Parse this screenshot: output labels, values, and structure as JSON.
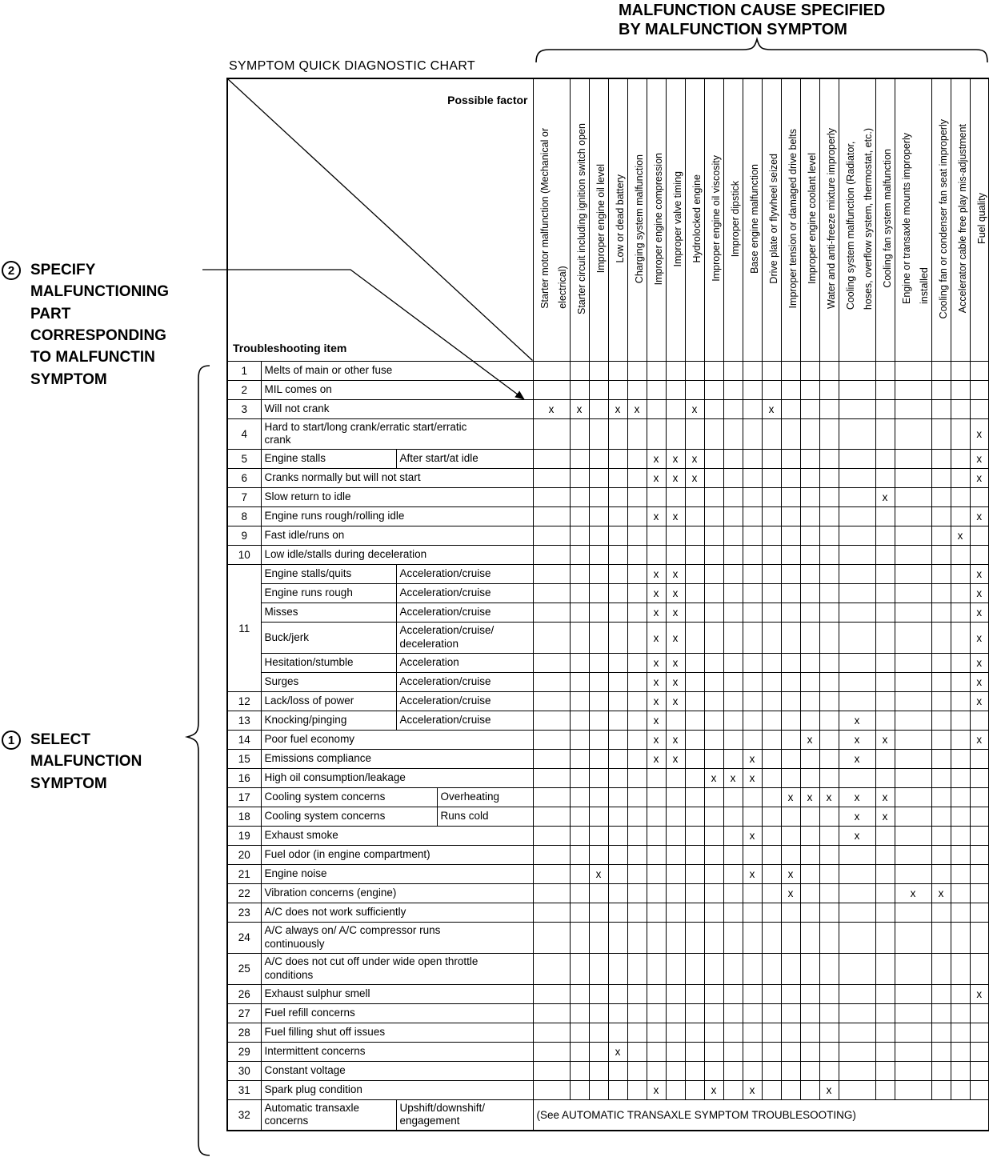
{
  "page": {
    "top_heading": "MALFUNCTION CAUSE SPECIFIED\nBY MALFUNCTION SYMPTOM",
    "chart_title": "SYMPTOM QUICK DIAGNOSTIC CHART",
    "annotation_2": {
      "number": "2",
      "text": "SPECIFY\nMALFUNCTIONING\nPART\nCORRESPONDING\nTO MALFUNCTIN\nSYMPTOM"
    },
    "annotation_1": {
      "number": "1",
      "text": "SELECT\nMALFUNCTION\nSYMPTOM"
    }
  },
  "table": {
    "corner": {
      "top_label": "Possible factor",
      "bottom_label": "Troubleshooting item"
    },
    "mark": "x",
    "columns": [
      {
        "label": "Starter motor malfunction (Mechanical or\nelectrical)",
        "wide": true
      },
      {
        "label": "Starter circuit including ignition switch open",
        "wide": false
      },
      {
        "label": "Improper engine oil level",
        "wide": false
      },
      {
        "label": "Low or dead battery",
        "wide": false
      },
      {
        "label": "Charging system malfunction",
        "wide": false
      },
      {
        "label": "Improper engine compression",
        "wide": false
      },
      {
        "label": "Improper valve timing",
        "wide": false
      },
      {
        "label": "Hydrolocked engine",
        "wide": false
      },
      {
        "label": "Improper engine oil viscosity",
        "wide": false
      },
      {
        "label": "Improper dipstick",
        "wide": false
      },
      {
        "label": "Base engine malfunction",
        "wide": false
      },
      {
        "label": "Drive plate or flywheel seized",
        "wide": false
      },
      {
        "label": "Improper tension or damaged drive belts",
        "wide": false
      },
      {
        "label": "Improper engine coolant level",
        "wide": false
      },
      {
        "label": "Water and anti-freeze mixture improperly",
        "wide": false
      },
      {
        "label": "Cooling system malfunction (Radiator,\nhoses, overflow system, thermostat, etc.)",
        "wide": true
      },
      {
        "label": "Cooling fan system malfunction",
        "wide": false
      },
      {
        "label": "Engine or transaxle mounts improperly\ninstalled",
        "wide": true
      },
      {
        "label": "Cooling fan or condenser fan seat improperly",
        "wide": false
      },
      {
        "label": "Accelerator cable free play mis-adjustment",
        "wide": false
      },
      {
        "label": "Fuel quality",
        "wide": false
      }
    ],
    "rows": [
      {
        "num": "1",
        "item": "Melts of main or other fuse",
        "condition": null,
        "marks": []
      },
      {
        "num": "2",
        "item": "MIL comes on",
        "condition": null,
        "marks": []
      },
      {
        "num": "3",
        "item": "Will not crank",
        "condition": null,
        "marks": [
          1,
          2,
          4,
          5,
          8,
          12
        ]
      },
      {
        "num": "4",
        "item": "Hard to start/long crank/erratic start/erratic\ncrank",
        "condition": null,
        "marks": [
          21
        ]
      },
      {
        "num": "5",
        "item": "Engine stalls",
        "condition": "After start/at idle",
        "split": "A",
        "marks": [
          6,
          7,
          8,
          21
        ]
      },
      {
        "num": "6",
        "item": "Cranks normally but will not start",
        "condition": null,
        "marks": [
          6,
          7,
          8,
          21
        ]
      },
      {
        "num": "7",
        "item": "Slow return to idle",
        "condition": null,
        "marks": [
          17
        ]
      },
      {
        "num": "8",
        "item": "Engine runs rough/rolling idle",
        "condition": null,
        "marks": [
          6,
          7,
          21
        ]
      },
      {
        "num": "9",
        "item": "Fast idle/runs on",
        "condition": null,
        "marks": [
          20
        ]
      },
      {
        "num": "10",
        "item": "Low idle/stalls during deceleration",
        "condition": null,
        "marks": []
      },
      {
        "num": "11",
        "num_span": 6,
        "item": "Engine stalls/quits",
        "condition": "Acceleration/cruise",
        "split": "A",
        "marks": [
          6,
          7,
          21
        ]
      },
      {
        "item": "Engine runs rough",
        "condition": "Acceleration/cruise",
        "split": "A",
        "marks": [
          6,
          7,
          21
        ]
      },
      {
        "item": "Misses",
        "condition": "Acceleration/cruise",
        "split": "A",
        "marks": [
          6,
          7,
          21
        ]
      },
      {
        "item": "Buck/jerk",
        "condition": "Acceleration/cruise/\ndeceleration",
        "split": "A",
        "marks": [
          6,
          7,
          21
        ]
      },
      {
        "item": "Hesitation/stumble",
        "condition": "Acceleration",
        "split": "A",
        "marks": [
          6,
          7,
          21
        ]
      },
      {
        "item": "Surges",
        "condition": "Acceleration/cruise",
        "split": "A",
        "marks": [
          6,
          7,
          21
        ]
      },
      {
        "num": "12",
        "item": "Lack/loss of power",
        "condition": "Acceleration/cruise",
        "split": "A",
        "marks": [
          6,
          7,
          21
        ]
      },
      {
        "num": "13",
        "item": "Knocking/pinging",
        "condition": "Acceleration/cruise",
        "split": "A",
        "marks": [
          6,
          16
        ]
      },
      {
        "num": "14",
        "item": "Poor fuel economy",
        "condition": null,
        "marks": [
          6,
          7,
          14,
          16,
          17,
          21
        ]
      },
      {
        "num": "15",
        "item": "Emissions compliance",
        "condition": null,
        "marks": [
          6,
          7,
          11,
          16
        ]
      },
      {
        "num": "16",
        "item": "High oil consumption/leakage",
        "condition": null,
        "marks": [
          9,
          10,
          11
        ]
      },
      {
        "num": "17",
        "item": "Cooling system concerns",
        "condition": "Overheating",
        "split": "B",
        "marks": [
          13,
          14,
          15,
          16,
          17
        ]
      },
      {
        "num": "18",
        "item": "Cooling system concerns",
        "condition": "Runs cold",
        "split": "B",
        "marks": [
          16,
          17
        ]
      },
      {
        "num": "19",
        "item": "Exhaust smoke",
        "condition": null,
        "marks": [
          11,
          16
        ]
      },
      {
        "num": "20",
        "item": "Fuel odor (in engine compartment)",
        "condition": null,
        "marks": []
      },
      {
        "num": "21",
        "item": "Engine noise",
        "condition": null,
        "marks": [
          3,
          11,
          13
        ]
      },
      {
        "num": "22",
        "item": "Vibration concerns (engine)",
        "condition": null,
        "marks": [
          13,
          18,
          19
        ]
      },
      {
        "num": "23",
        "item": "A/C does not work sufficiently",
        "condition": null,
        "marks": []
      },
      {
        "num": "24",
        "item": "A/C always on/ A/C compressor runs\ncontinuously",
        "condition": null,
        "marks": []
      },
      {
        "num": "25",
        "item": "A/C does not cut off under wide open throttle\nconditions",
        "condition": null,
        "marks": []
      },
      {
        "num": "26",
        "item": "Exhaust sulphur smell",
        "condition": null,
        "marks": [
          21
        ]
      },
      {
        "num": "27",
        "item": "Fuel refill concerns",
        "condition": null,
        "marks": []
      },
      {
        "num": "28",
        "item": "Fuel filling shut off issues",
        "condition": null,
        "marks": []
      },
      {
        "num": "29",
        "item": "Intermittent concerns",
        "condition": null,
        "marks": [
          4
        ]
      },
      {
        "num": "30",
        "item": "Constant voltage",
        "condition": null,
        "marks": []
      },
      {
        "num": "31",
        "item": "Spark plug condition",
        "condition": null,
        "marks": [
          6,
          9,
          11,
          15
        ]
      },
      {
        "num": "32",
        "item": "Automatic transaxle\nconcerns",
        "condition": "Upshift/downshift/\nengagement",
        "split": "A",
        "note": "(See AUTOMATIC TRANSAXLE SYMPTOM TROUBLESOOTING)"
      }
    ]
  }
}
